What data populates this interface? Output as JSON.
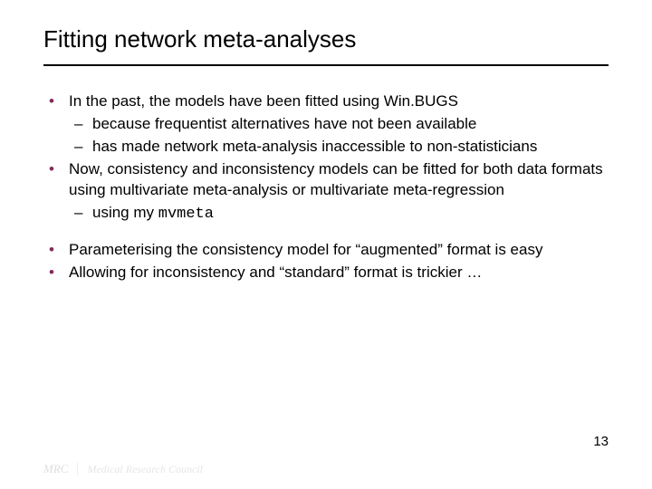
{
  "title": "Fitting network meta-analyses",
  "bullets": {
    "b1": "In the past, the models have been fitted using Win.BUGS",
    "b1a": "because frequentist alternatives have not been available",
    "b1b": "has made network meta-analysis inaccessible to non-statisticians",
    "b2": "Now, consistency and inconsistency models can be fitted for both data formats using multivariate meta-analysis or multivariate meta-regression",
    "b2a_prefix": "using my ",
    "b2a_code": "mvmeta",
    "b3": "Parameterising the consistency model for “augmented” format is easy",
    "b4": "Allowing for inconsistency and “standard” format is trickier …"
  },
  "page_number": "13",
  "footer": {
    "logo": "MRC",
    "text": "Medical Research Council"
  },
  "colors": {
    "bullet_accent": "#822a5a",
    "text": "#000000",
    "background": "#ffffff"
  }
}
